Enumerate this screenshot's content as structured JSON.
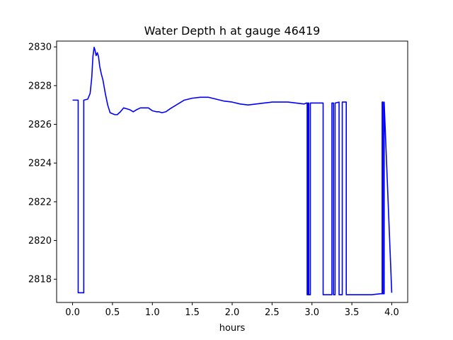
{
  "chart_data": {
    "type": "line",
    "title": "Water Depth h at gauge 46419",
    "xlabel": "hours",
    "ylabel": "",
    "xlim": [
      -0.2,
      4.2
    ],
    "ylim": [
      2816.8,
      2830.3
    ],
    "xticks": [
      0.0,
      0.5,
      1.0,
      1.5,
      2.0,
      2.5,
      3.0,
      3.5,
      4.0
    ],
    "xtick_labels": [
      "0.0",
      "0.5",
      "1.0",
      "1.5",
      "2.0",
      "2.5",
      "3.0",
      "3.5",
      "4.0"
    ],
    "yticks": [
      2818,
      2820,
      2822,
      2824,
      2826,
      2828,
      2830
    ],
    "ytick_labels": [
      "2818",
      "2820",
      "2822",
      "2824",
      "2826",
      "2828",
      "2830"
    ],
    "grid": false,
    "series": [
      {
        "color": "#0000ff",
        "x": [
          0.0,
          0.07,
          0.07,
          0.14,
          0.14,
          0.19,
          0.22,
          0.24,
          0.255,
          0.27,
          0.28,
          0.295,
          0.31,
          0.325,
          0.34,
          0.36,
          0.38,
          0.41,
          0.44,
          0.47,
          0.5,
          0.53,
          0.56,
          0.6,
          0.64,
          0.68,
          0.72,
          0.76,
          0.8,
          0.85,
          0.9,
          0.95,
          1.0,
          1.05,
          1.08,
          1.12,
          1.17,
          1.22,
          1.3,
          1.4,
          1.5,
          1.6,
          1.7,
          1.8,
          1.9,
          2.0,
          2.1,
          2.2,
          2.3,
          2.4,
          2.5,
          2.6,
          2.7,
          2.8,
          2.9,
          2.93,
          2.94,
          2.94,
          2.95,
          2.95,
          2.96,
          2.96,
          2.98,
          2.98,
          3.0,
          3.0,
          3.14,
          3.14,
          3.25,
          3.25,
          3.27,
          3.27,
          3.29,
          3.29,
          3.34,
          3.34,
          3.38,
          3.38,
          3.43,
          3.43,
          3.48,
          3.48,
          3.6,
          3.75,
          3.86,
          3.88,
          3.88,
          3.89,
          3.89,
          3.905,
          3.905,
          4.0
        ],
        "y": [
          2827.25,
          2827.25,
          2817.3,
          2817.3,
          2827.25,
          2827.3,
          2827.6,
          2828.4,
          2829.5,
          2829.98,
          2829.85,
          2829.55,
          2829.7,
          2829.5,
          2829.0,
          2828.6,
          2828.3,
          2827.6,
          2827.0,
          2826.6,
          2826.55,
          2826.5,
          2826.5,
          2826.65,
          2826.85,
          2826.8,
          2826.75,
          2826.65,
          2826.75,
          2826.85,
          2826.85,
          2826.85,
          2826.7,
          2826.65,
          2826.65,
          2826.6,
          2826.65,
          2826.8,
          2827.0,
          2827.25,
          2827.35,
          2827.4,
          2827.4,
          2827.3,
          2827.2,
          2827.15,
          2827.05,
          2827.0,
          2827.05,
          2827.1,
          2827.15,
          2827.15,
          2827.15,
          2827.1,
          2827.05,
          2827.1,
          2827.1,
          2817.2,
          2817.2,
          2827.1,
          2827.1,
          2817.2,
          2817.2,
          2827.1,
          2827.1,
          2827.1,
          2827.1,
          2817.2,
          2817.2,
          2827.1,
          2827.1,
          2817.2,
          2817.2,
          2827.1,
          2827.15,
          2817.2,
          2817.2,
          2827.15,
          2827.15,
          2817.2,
          2817.2,
          2817.2,
          2817.2,
          2817.2,
          2817.25,
          2817.25,
          2827.15,
          2827.15,
          2817.25,
          2817.25,
          2827.15,
          2817.3
        ]
      }
    ]
  }
}
